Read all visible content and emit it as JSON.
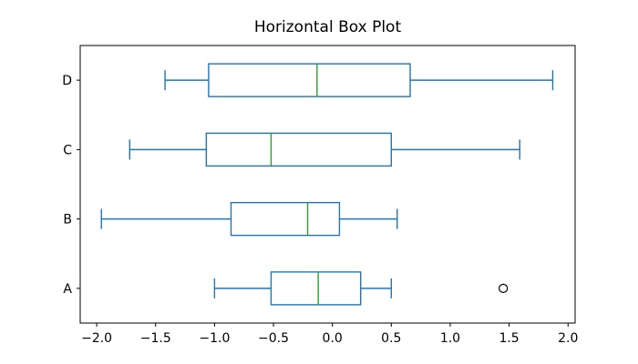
{
  "chart_data": {
    "type": "boxplot",
    "orientation": "horizontal",
    "title": "Horizontal Box Plot",
    "xlabel": "",
    "ylabel": "",
    "grid": false,
    "legend": null,
    "xlim": [
      -2.14,
      2.06
    ],
    "ylim": [
      0.5,
      4.5
    ],
    "x_ticks": {
      "values": [
        -2.0,
        -1.5,
        -1.0,
        -0.5,
        0.0,
        0.5,
        1.0,
        1.5,
        2.0
      ],
      "labels": [
        "−2.0",
        "−1.5",
        "−1.0",
        "−0.5",
        "0.0",
        "0.5",
        "1.0",
        "1.5",
        "2.0"
      ]
    },
    "categories": [
      "A",
      "B",
      "C",
      "D"
    ],
    "series": [
      {
        "label": "A",
        "position": 1,
        "whisker_low": -1.0,
        "q1": -0.52,
        "median": -0.12,
        "q3": 0.24,
        "whisker_high": 0.5,
        "outliers": [
          1.45
        ]
      },
      {
        "label": "B",
        "position": 2,
        "whisker_low": -1.96,
        "q1": -0.86,
        "median": -0.21,
        "q3": 0.06,
        "whisker_high": 0.55,
        "outliers": []
      },
      {
        "label": "C",
        "position": 3,
        "whisker_low": -1.72,
        "q1": -1.07,
        "median": -0.52,
        "q3": 0.5,
        "whisker_high": 1.59,
        "outliers": []
      },
      {
        "label": "D",
        "position": 4,
        "whisker_low": -1.42,
        "q1": -1.05,
        "median": -0.13,
        "q3": 0.66,
        "whisker_high": 1.87,
        "outliers": []
      }
    ],
    "colors": {
      "box": "#1f77b4",
      "whisker": "#1f77b4",
      "cap": "#1f77b4",
      "median": "#2ca02c",
      "flier_edge": "#000000",
      "axis": "#000000",
      "background": "#ffffff"
    }
  }
}
